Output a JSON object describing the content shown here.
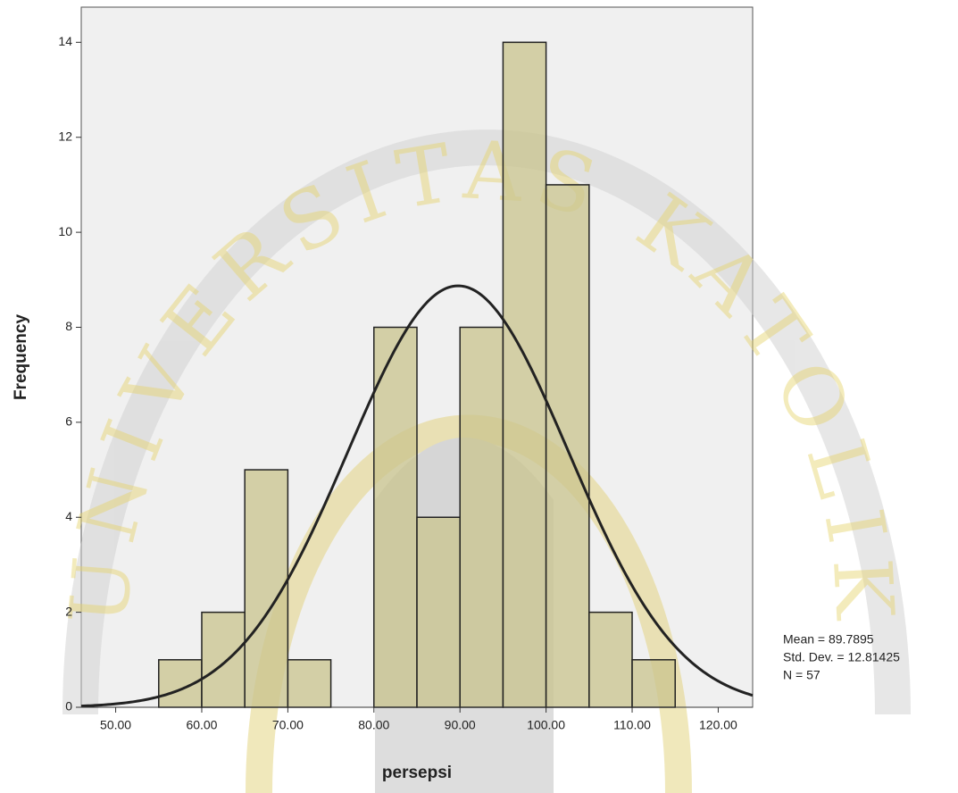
{
  "chart_data": {
    "type": "histogram",
    "x_label": "persepsi",
    "y_label": "Frequency",
    "bins": [
      55,
      60,
      65,
      70,
      75,
      80,
      85,
      90,
      95,
      100,
      105,
      110,
      115
    ],
    "counts": [
      1,
      2,
      5,
      1,
      0,
      8,
      4,
      8,
      14,
      11,
      2,
      1
    ],
    "color": "#c9c48e",
    "curve_color": "#222222",
    "xlim": [
      46,
      124
    ],
    "xticks": [
      {
        "value": 50,
        "label": "50.00"
      },
      {
        "value": 60,
        "label": "60.00"
      },
      {
        "value": 70,
        "label": "70.00"
      },
      {
        "value": 80,
        "label": "80.00"
      },
      {
        "value": 90,
        "label": "90.00"
      },
      {
        "value": 100,
        "label": "100.00"
      },
      {
        "value": 110,
        "label": "110.00"
      },
      {
        "value": 120,
        "label": "120.00"
      }
    ],
    "ylim": [
      0,
      14.74
    ],
    "yticks": [
      0,
      2,
      4,
      6,
      8,
      10,
      12,
      14
    ],
    "mean": {
      "value": 89.7895,
      "label": "Mean = 89.7895"
    },
    "std_dev": {
      "value": 12.81425,
      "label": "Std. Dev. = 12.81425"
    },
    "n": {
      "value": 57,
      "label": "N = 57"
    },
    "watermark": "UNIVERSITAS KATOLIK"
  }
}
